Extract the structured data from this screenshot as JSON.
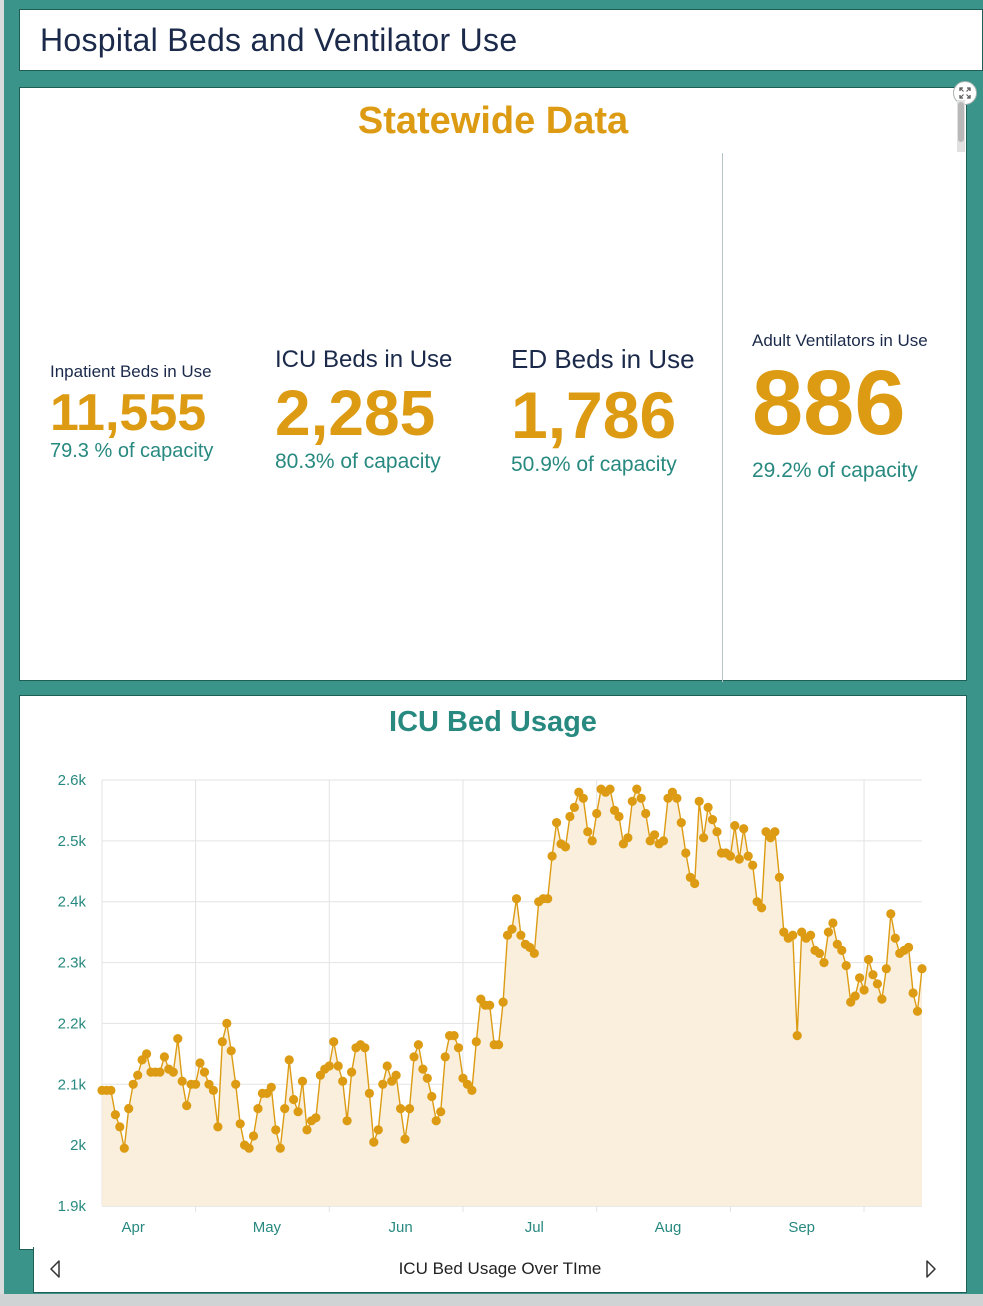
{
  "header": {
    "title": "Hospital Beds and Ventilator Use"
  },
  "statewide": {
    "title": "Statewide Data",
    "stats": [
      {
        "label": "Inpatient Beds in Use",
        "value": "11,555",
        "capacity": "79.3 % of capacity"
      },
      {
        "label": "ICU Beds in Use",
        "value": "2,285",
        "capacity": "80.3% of capacity"
      },
      {
        "label": "ED Beds in Use",
        "value": "1,786",
        "capacity": "50.9% of capacity"
      },
      {
        "label": "Adult Ventilators in Use",
        "value": "886",
        "capacity": "29.2% of capacity"
      }
    ]
  },
  "chart_section": {
    "title": "ICU Bed Usage",
    "caption": "ICU Bed Usage Over TIme"
  },
  "colors": {
    "accent_gold": "#dc9b12",
    "teal": "#27897f",
    "frame": "#3a9489",
    "fill": "#f9efdc"
  },
  "icons": {
    "expand": "expand-icon",
    "prev": "chevron-left-icon",
    "next": "chevron-right-icon"
  },
  "chart_data": {
    "type": "area",
    "title": "ICU Bed Usage",
    "xlabel": "",
    "ylabel": "",
    "ylim": [
      1900,
      2600
    ],
    "y_ticks": [
      "1.9k",
      "2k",
      "2.1k",
      "2.2k",
      "2.3k",
      "2.4k",
      "2.5k",
      "2.6k"
    ],
    "y_tick_values": [
      1900,
      2000,
      2100,
      2200,
      2300,
      2400,
      2500,
      2600
    ],
    "x_tick_labels": [
      "Apr",
      "May",
      "Jun",
      "Jul",
      "Aug",
      "Sep"
    ],
    "x_tick_day_index": [
      6,
      36,
      66,
      96,
      126,
      156
    ],
    "series": [
      {
        "name": "ICU Beds in Use",
        "values": [
          2090,
          2090,
          2090,
          2050,
          2030,
          1995,
          2060,
          2100,
          2115,
          2140,
          2150,
          2120,
          2120,
          2120,
          2145,
          2125,
          2120,
          2175,
          2105,
          2065,
          2100,
          2100,
          2135,
          2120,
          2100,
          2090,
          2030,
          2170,
          2200,
          2155,
          2100,
          2035,
          2000,
          1995,
          2015,
          2060,
          2085,
          2085,
          2095,
          2025,
          1995,
          2060,
          2140,
          2075,
          2055,
          2105,
          2025,
          2040,
          2045,
          2115,
          2125,
          2130,
          2170,
          2130,
          2105,
          2040,
          2120,
          2160,
          2165,
          2160,
          2085,
          2005,
          2025,
          2100,
          2130,
          2105,
          2115,
          2060,
          2010,
          2060,
          2145,
          2165,
          2125,
          2110,
          2080,
          2040,
          2055,
          2145,
          2180,
          2180,
          2160,
          2110,
          2100,
          2090,
          2170,
          2240,
          2230,
          2230,
          2165,
          2165,
          2235,
          2345,
          2355,
          2405,
          2345,
          2330,
          2325,
          2315,
          2400,
          2405,
          2405,
          2475,
          2530,
          2495,
          2490,
          2540,
          2555,
          2580,
          2570,
          2515,
          2500,
          2545,
          2585,
          2580,
          2585,
          2550,
          2540,
          2495,
          2505,
          2565,
          2585,
          2570,
          2545,
          2500,
          2510,
          2495,
          2500,
          2570,
          2580,
          2570,
          2530,
          2480,
          2440,
          2430,
          2565,
          2505,
          2555,
          2535,
          2515,
          2480,
          2480,
          2475,
          2525,
          2470,
          2520,
          2475,
          2460,
          2400,
          2390,
          2515,
          2505,
          2515,
          2440,
          2350,
          2340,
          2345,
          2180,
          2350,
          2340,
          2345,
          2320,
          2315,
          2300,
          2350,
          2365,
          2330,
          2320,
          2295,
          2235,
          2245,
          2275,
          2255,
          2305,
          2280,
          2265,
          2240,
          2290,
          2380,
          2340,
          2315,
          2320,
          2325,
          2250,
          2220,
          2290
        ]
      }
    ]
  }
}
